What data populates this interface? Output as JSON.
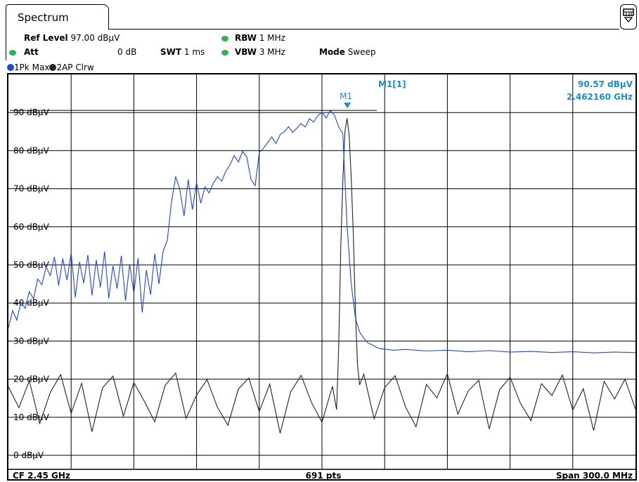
{
  "window": {
    "tab_title": "Spectrum",
    "corner_icon": "window-config-icon"
  },
  "settings": {
    "ref_level_label": "Ref Level",
    "ref_level_value": "97.00 dBµV",
    "att_label": "Att",
    "att_value": "0 dB",
    "swt_label": "SWT",
    "swt_value": "1 ms",
    "rbw_label": "RBW",
    "rbw_value": "1 MHz",
    "vbw_label": "VBW",
    "vbw_value": "3 MHz",
    "mode_label": "Mode",
    "mode_value": "Sweep",
    "indicator_color": "#2fb34a"
  },
  "traces": [
    {
      "label": "1Pk Max",
      "color": "#2048d8"
    },
    {
      "label": "2AP Clrw",
      "color": "#222222"
    }
  ],
  "marker": {
    "name": "M1",
    "id_label": "M1[1]",
    "level": "90.57 dBµV",
    "freq": "2.462160 GHz",
    "color": "#1a8fd0"
  },
  "footer": {
    "cf": "CF 2.45 GHz",
    "pts": "691 pts",
    "span": "Span 300.0 MHz"
  },
  "chart_data": {
    "type": "line",
    "x_unit": "MHz",
    "xlim": [
      2300,
      2600
    ],
    "ylim": [
      -3.5,
      100
    ],
    "y_ticks": [
      {
        "v": 90,
        "label": "90 dBµV"
      },
      {
        "v": 80,
        "label": "80 dBµV"
      },
      {
        "v": 70,
        "label": "70 dBµV"
      },
      {
        "v": 60,
        "label": "60 dBµV"
      },
      {
        "v": 50,
        "label": "50 dBµV"
      },
      {
        "v": 40,
        "label": "40 dBµV"
      },
      {
        "v": 30,
        "label": "30 dBµV"
      },
      {
        "v": 20,
        "label": "20 dBµV"
      },
      {
        "v": 10,
        "label": "10 dBµV"
      },
      {
        "v": 0,
        "label": "0 dBµV"
      }
    ],
    "x_grid": [
      2330,
      2360,
      2390,
      2420,
      2450,
      2480,
      2510,
      2540,
      2570
    ],
    "grid": true,
    "series": [
      {
        "name": "1Pk Max",
        "color": "#2048d8",
        "x": [
          2300,
          2302,
          2304,
          2306,
          2308,
          2310,
          2312,
          2314,
          2316,
          2318,
          2320,
          2322,
          2324,
          2326,
          2328,
          2330,
          2332,
          2334,
          2336,
          2338,
          2340,
          2342,
          2344,
          2346,
          2348,
          2350,
          2352,
          2354,
          2356,
          2358,
          2360,
          2362,
          2364,
          2366,
          2368,
          2370,
          2372,
          2374,
          2376,
          2378,
          2380,
          2382,
          2384,
          2386,
          2388,
          2390,
          2392,
          2394,
          2396,
          2398,
          2400,
          2402,
          2404,
          2406,
          2408,
          2410,
          2412,
          2414,
          2416,
          2418,
          2420,
          2422,
          2424,
          2426,
          2428,
          2430,
          2432,
          2434,
          2436,
          2438,
          2440,
          2442,
          2444,
          2446,
          2448,
          2450,
          2452,
          2454,
          2456,
          2458,
          2460,
          2462,
          2464,
          2466,
          2468,
          2470,
          2472,
          2474,
          2476,
          2478,
          2480,
          2484,
          2490,
          2500,
          2510,
          2520,
          2530,
          2540,
          2550,
          2560,
          2570,
          2580,
          2590,
          2600
        ],
        "y": [
          33.5,
          38.0,
          35.5,
          40.2,
          38.6,
          43.0,
          41.1,
          46.3,
          44.8,
          49.5,
          47.2,
          52.1,
          44.6,
          51.7,
          46.0,
          53.2,
          41.5,
          50.8,
          45.2,
          52.6,
          42.0,
          51.3,
          44.1,
          53.5,
          41.2,
          49.7,
          43.8,
          52.4,
          40.6,
          50.2,
          42.5,
          51.8,
          37.5,
          48.6,
          42.2,
          52.9,
          45.0,
          53.6,
          56.5,
          66.5,
          73.2,
          69.8,
          62.8,
          72.4,
          64.5,
          71.6,
          66.2,
          70.5,
          68.9,
          71.4,
          73.2,
          72.0,
          74.6,
          76.3,
          78.7,
          77.0,
          79.8,
          78.4,
          72.5,
          70.8,
          79.5,
          80.6,
          82.1,
          83.6,
          81.9,
          84.2,
          85.0,
          86.3,
          84.8,
          85.9,
          87.1,
          86.2,
          88.4,
          87.5,
          89.2,
          90.1,
          88.6,
          90.57,
          89.3,
          86.2,
          84.5,
          60.2,
          45.1,
          36.0,
          32.4,
          30.7,
          29.5,
          29.0,
          28.4,
          28.0,
          27.9,
          27.6,
          27.8,
          27.4,
          27.6,
          27.2,
          27.5,
          27.1,
          27.3,
          27.0,
          27.2,
          26.9,
          27.1,
          27.0
        ]
      },
      {
        "name": "2AP Clrw",
        "color": "#222222",
        "x": [
          2300,
          2305,
          2310,
          2315,
          2320,
          2325,
          2330,
          2335,
          2340,
          2345,
          2350,
          2355,
          2360,
          2365,
          2370,
          2375,
          2380,
          2385,
          2390,
          2395,
          2400,
          2405,
          2410,
          2415,
          2420,
          2425,
          2430,
          2435,
          2440,
          2445,
          2450,
          2455,
          2457,
          2458,
          2459,
          2460,
          2461,
          2462,
          2463,
          2464,
          2465,
          2466,
          2467,
          2468,
          2470,
          2475,
          2480,
          2485,
          2490,
          2495,
          2500,
          2505,
          2510,
          2515,
          2520,
          2525,
          2530,
          2535,
          2540,
          2545,
          2550,
          2555,
          2560,
          2565,
          2570,
          2575,
          2580,
          2585,
          2590,
          2595,
          2600
        ],
        "y": [
          18.0,
          12.5,
          19.6,
          8.4,
          16.5,
          21.2,
          11.0,
          18.9,
          6.2,
          17.7,
          20.8,
          10.3,
          19.1,
          14.2,
          8.8,
          18.4,
          21.6,
          9.7,
          15.8,
          19.9,
          12.6,
          7.9,
          17.4,
          20.3,
          11.5,
          18.7,
          5.8,
          16.6,
          21.0,
          13.9,
          8.7,
          18.1,
          12.0,
          28.5,
          55.0,
          72.0,
          85.0,
          88.5,
          84.0,
          73.0,
          58.0,
          38.0,
          24.0,
          18.5,
          21.3,
          9.6,
          17.8,
          20.9,
          12.7,
          7.5,
          18.6,
          15.1,
          21.4,
          10.8,
          16.9,
          19.7,
          6.9,
          17.2,
          20.5,
          13.6,
          9.1,
          18.8,
          15.7,
          21.1,
          11.9,
          17.5,
          6.5,
          19.4,
          14.8,
          20.0,
          12.1
        ]
      }
    ]
  }
}
